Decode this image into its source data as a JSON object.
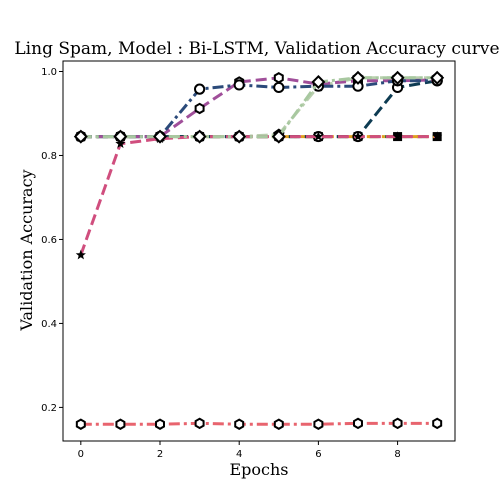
{
  "chart_data": {
    "type": "line",
    "title": "Ling Spam, Model : Bi-LSTM, Validation Accuracy curve",
    "xlabel": "Epochs",
    "ylabel": "Validation Accuracy",
    "xlim": [
      -0.45,
      9.45
    ],
    "ylim": [
      0.12,
      1.025
    ],
    "xticks": [
      0,
      2,
      4,
      6,
      8
    ],
    "yticks": [
      0.2,
      0.4,
      0.6,
      0.8,
      1.0
    ],
    "x": [
      0,
      1,
      2,
      3,
      4,
      5,
      6,
      7,
      8,
      9
    ],
    "grid": false,
    "legend": "none",
    "series": [
      {
        "color": "#e8646e",
        "dash": "dashdot",
        "marker": "hexagon",
        "values": [
          0.16,
          0.16,
          0.16,
          0.162,
          0.16,
          0.16,
          0.16,
          0.162,
          0.162,
          0.162
        ]
      },
      {
        "color": "#2f7a2f",
        "dash": "dashed",
        "marker": "square",
        "values": [
          0.845,
          0.845,
          0.845,
          0.845,
          0.845,
          0.845,
          0.845,
          0.845,
          0.845,
          0.845
        ]
      },
      {
        "color": "#e0a020",
        "dash": "dashdot",
        "marker": "x",
        "values": [
          0.845,
          0.845,
          0.845,
          0.845,
          0.845,
          0.845,
          0.845,
          0.845,
          0.845,
          0.845
        ]
      },
      {
        "color": "#0d3b52",
        "dash": "dashed",
        "marker": "circle",
        "values": [
          0.845,
          0.845,
          0.845,
          0.845,
          0.845,
          0.845,
          0.845,
          0.845,
          0.962,
          0.978
        ]
      },
      {
        "color": "#b9cfae",
        "dash": "dashdot",
        "marker": "pentagon",
        "values": [
          0.845,
          0.845,
          0.845,
          0.845,
          0.845,
          0.85,
          0.965,
          0.985,
          0.985,
          0.985
        ]
      },
      {
        "color": "#a04f9a",
        "dash": "dashed",
        "marker": "hexagon",
        "values": [
          0.845,
          0.845,
          0.845,
          0.912,
          0.975,
          0.985,
          0.97,
          0.978,
          0.978,
          0.98
        ]
      },
      {
        "color": "#2b4a7a",
        "dash": "dashdot",
        "marker": "circle",
        "values": [
          0.845,
          0.845,
          0.845,
          0.958,
          0.968,
          0.962,
          0.965,
          0.965,
          0.978,
          0.978
        ]
      },
      {
        "color": "#d04e7e",
        "dash": "dashed",
        "marker": "star",
        "values": [
          0.563,
          0.828,
          0.84,
          0.845,
          0.845,
          0.845,
          0.845,
          0.845,
          0.845,
          0.845
        ]
      },
      {
        "color": "#a8c8a0",
        "dash": "dashdot",
        "marker": "diamond",
        "values": [
          0.845,
          0.845,
          0.845,
          0.845,
          0.845,
          0.845,
          0.975,
          0.985,
          0.985,
          0.985
        ]
      }
    ]
  }
}
